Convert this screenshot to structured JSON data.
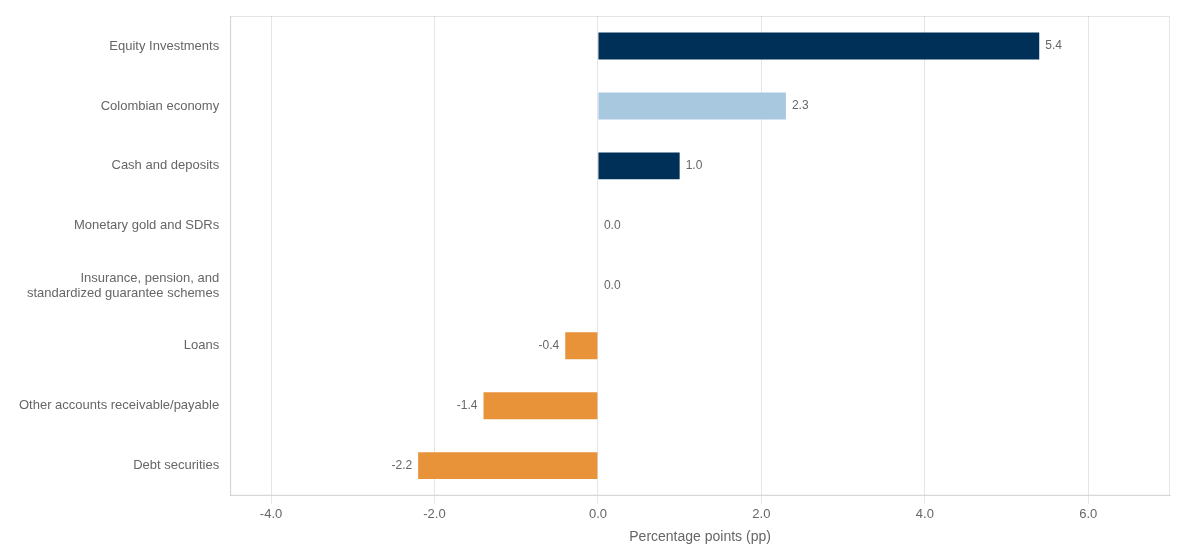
{
  "chart_data": {
    "type": "bar",
    "orientation": "horizontal",
    "categories": [
      "Equity Investments",
      "Colombian economy",
      "Cash and deposits",
      "Monetary gold and SDRs",
      "Insurance, pension, and\nstandardized guarantee schemes",
      "Loans",
      "Other accounts receivable/payable",
      "Debt securities"
    ],
    "values": [
      5.4,
      2.3,
      1.0,
      0.0,
      0.0,
      -0.4,
      -1.4,
      -2.2
    ],
    "value_labels": [
      "5.4",
      "2.3",
      "1.0",
      "0.0",
      "0.0",
      "-0.4",
      "-1.4",
      "-2.2"
    ],
    "data_labels": true,
    "colors": [
      "#003057",
      "#a8c8e0",
      "#003057",
      "#003057",
      "#003057",
      "#e8923a",
      "#e8923a",
      "#e8923a"
    ],
    "xlabel": "Percentage points (pp)",
    "xlim": [
      -4.5,
      7.0
    ],
    "xticks": [
      {
        "value": -4.0,
        "label": "-4.0"
      },
      {
        "value": -2.0,
        "label": "-2.0"
      },
      {
        "value": 0.0,
        "label": "0.0"
      },
      {
        "value": 2.0,
        "label": "2.0"
      },
      {
        "value": 4.0,
        "label": "4.0"
      },
      {
        "value": 6.0,
        "label": "6.0"
      }
    ],
    "grid": true
  }
}
